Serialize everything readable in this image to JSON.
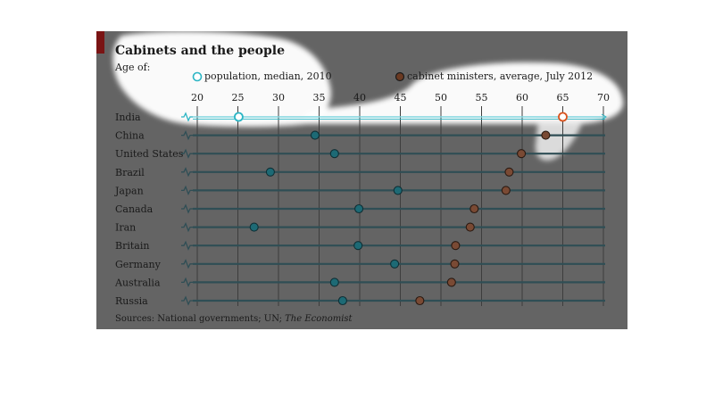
{
  "chart_data": {
    "type": "scatter",
    "title": "Cabinets and the people",
    "subtitle": "Age of:",
    "legend_position": "top",
    "xlim": [
      20,
      70
    ],
    "x_ticks": [
      "20",
      "25",
      "30",
      "35",
      "40",
      "45",
      "50",
      "55",
      "60",
      "65",
      "70"
    ],
    "grid": true,
    "categories": [
      "India",
      "China",
      "United States",
      "Brazil",
      "Japan",
      "Canada",
      "Iran",
      "Britain",
      "Germany",
      "Australia",
      "Russia"
    ],
    "series": [
      {
        "name": "population, median, 2010",
        "color": "#2bb5c4",
        "values": [
          25.1,
          34.5,
          36.9,
          29.0,
          44.7,
          39.9,
          27.0,
          39.8,
          44.3,
          36.9,
          37.9
        ]
      },
      {
        "name": "cabinet ministers, average, July 2012",
        "color": "#b65a2c",
        "values": [
          65.0,
          62.9,
          59.9,
          58.4,
          58.0,
          54.1,
          53.6,
          51.8,
          51.7,
          51.3,
          47.4
        ]
      }
    ],
    "source_prefix": "Sources: National governments; UN; ",
    "source_italic": "The Economist"
  },
  "colors": {
    "panel_background": "#646464",
    "gridline": "#3d3d3d",
    "row_line": "#2f4e55",
    "highlight": "#ffffff",
    "accent": "#7a1414"
  }
}
